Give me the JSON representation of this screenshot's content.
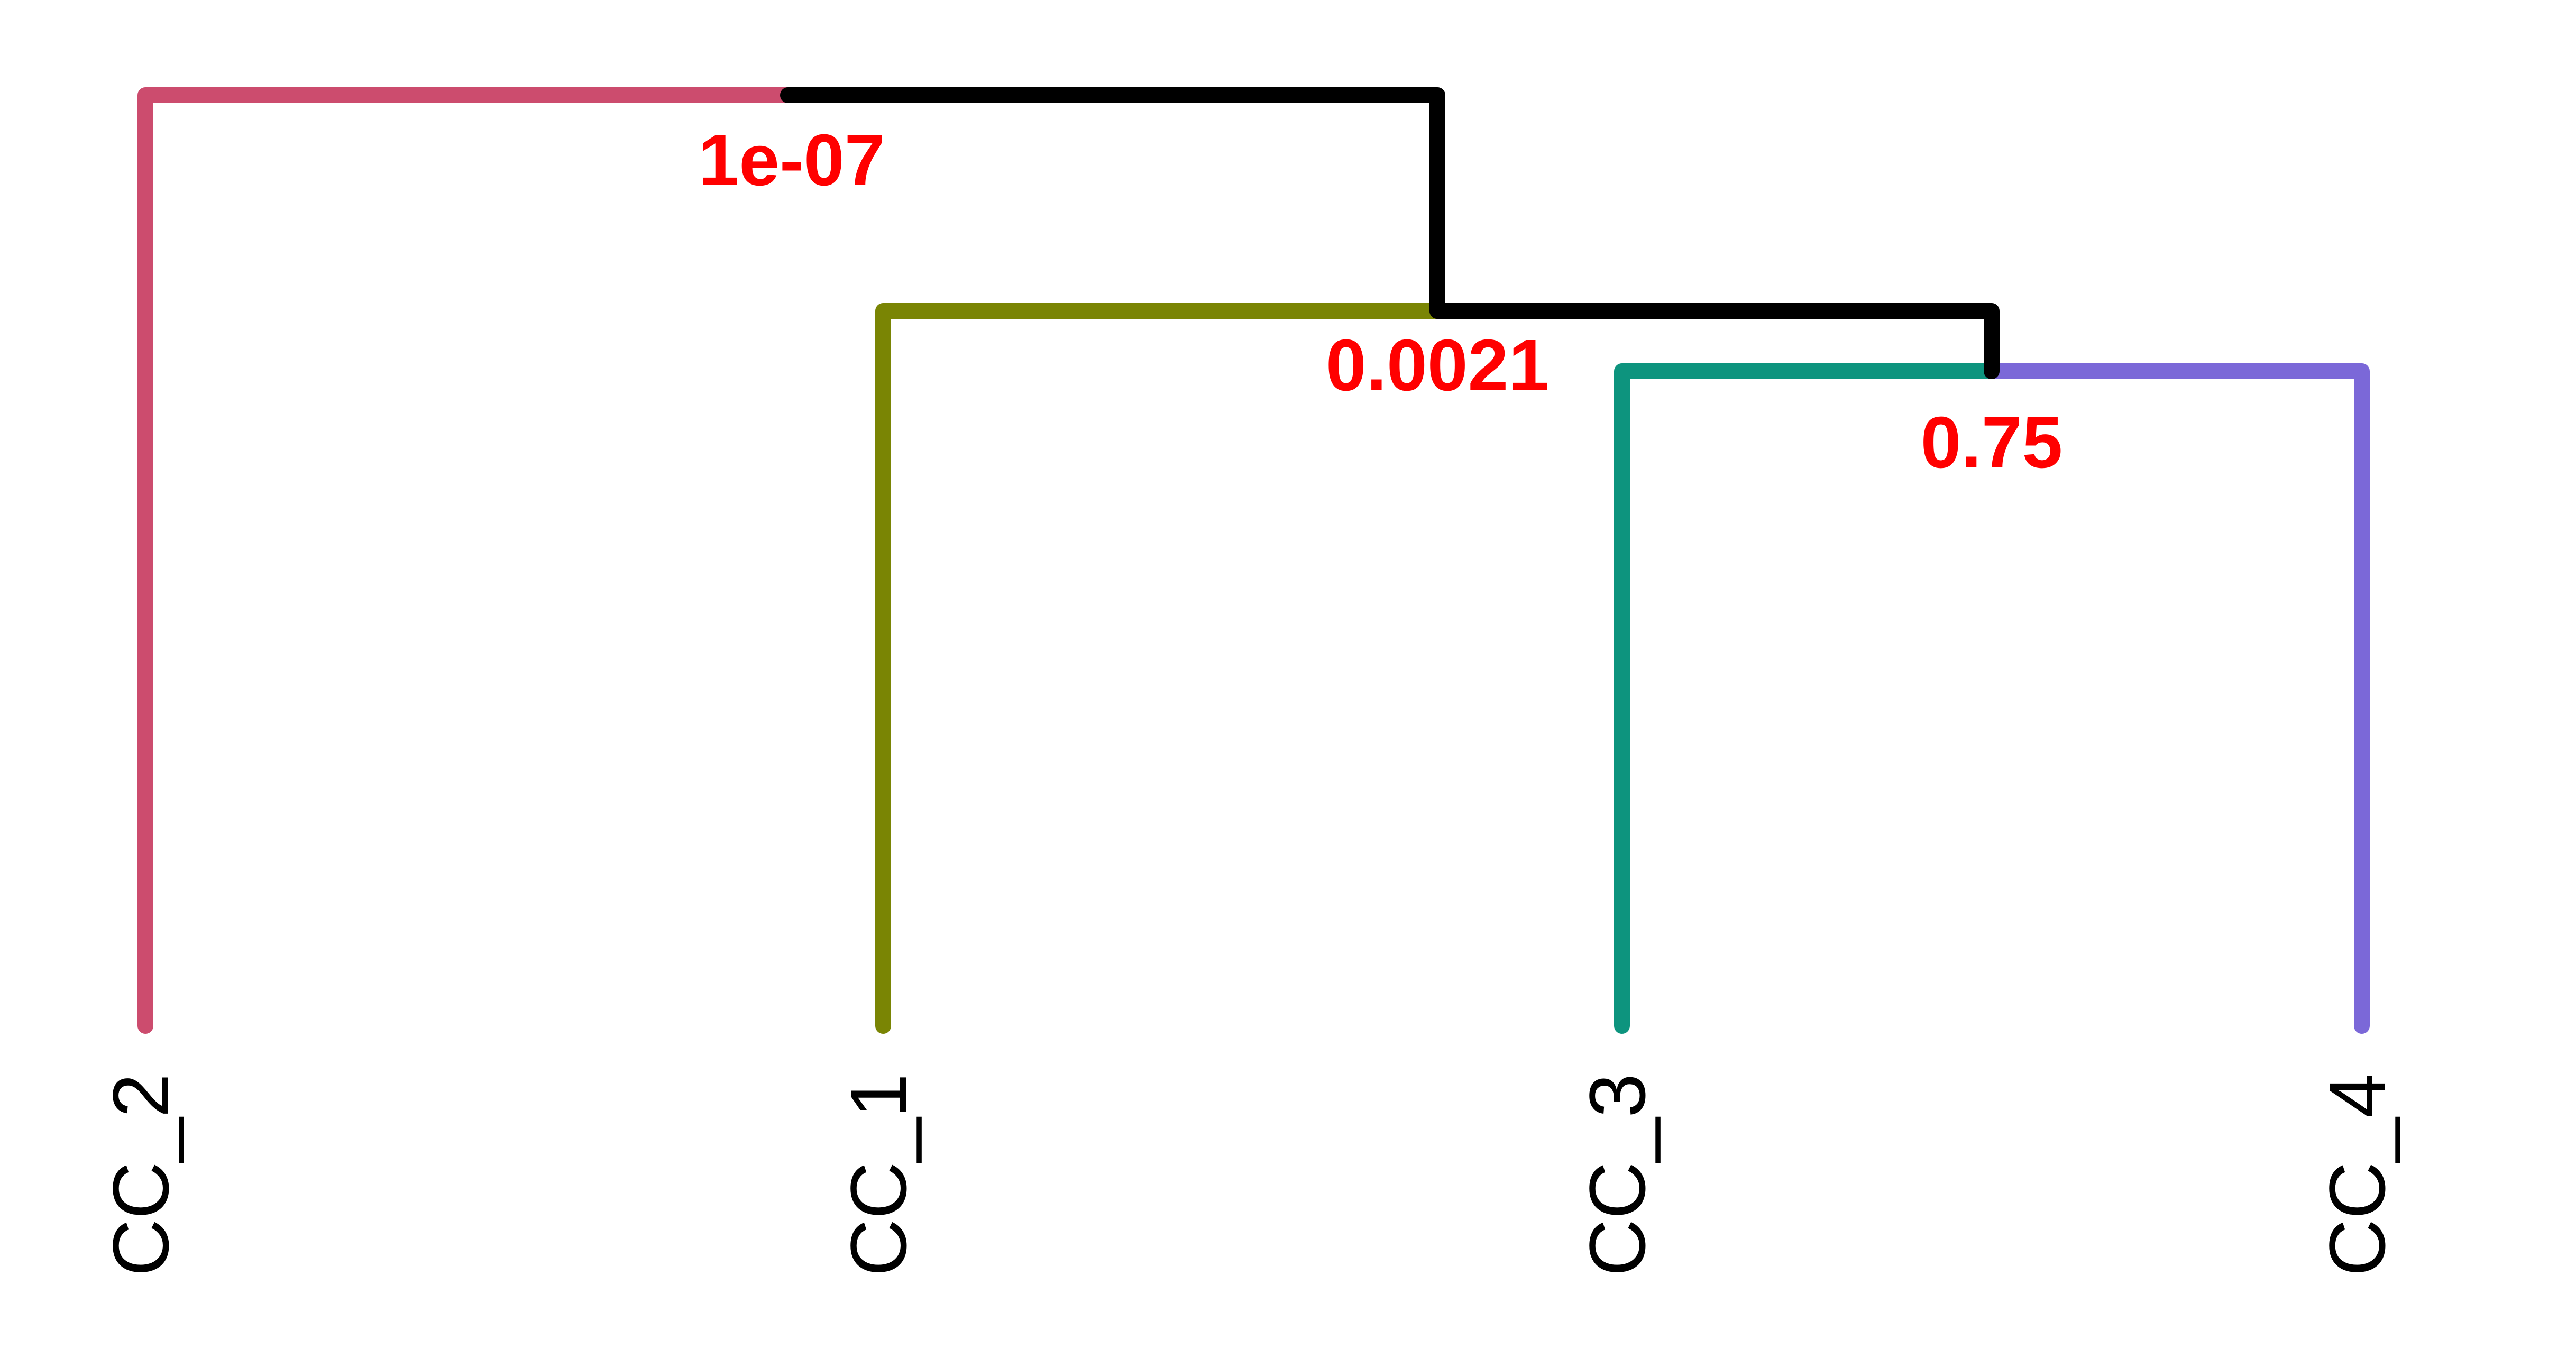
{
  "leaves": [
    {
      "id": "cc2",
      "label": "CC_2",
      "color": "#CC4C6E"
    },
    {
      "id": "cc1",
      "label": "CC_1",
      "color": "#7A8504"
    },
    {
      "id": "cc3",
      "label": "CC_3",
      "color": "#0D947E"
    },
    {
      "id": "cc4",
      "label": "CC_4",
      "color": "#7B68D8"
    }
  ],
  "merges": [
    {
      "id": "m_34",
      "children": [
        "cc3",
        "cc4"
      ],
      "pvalue": "0.75"
    },
    {
      "id": "m_1_34",
      "children": [
        "cc1",
        "m_34"
      ],
      "pvalue": "0.0021"
    },
    {
      "id": "m_root",
      "children": [
        "cc2",
        "m_1_34"
      ],
      "pvalue": "1e-07"
    }
  ],
  "colors": {
    "internal_branch": "#000000",
    "pvalue_text": "#FF0000",
    "leaf_text": "#000000"
  }
}
